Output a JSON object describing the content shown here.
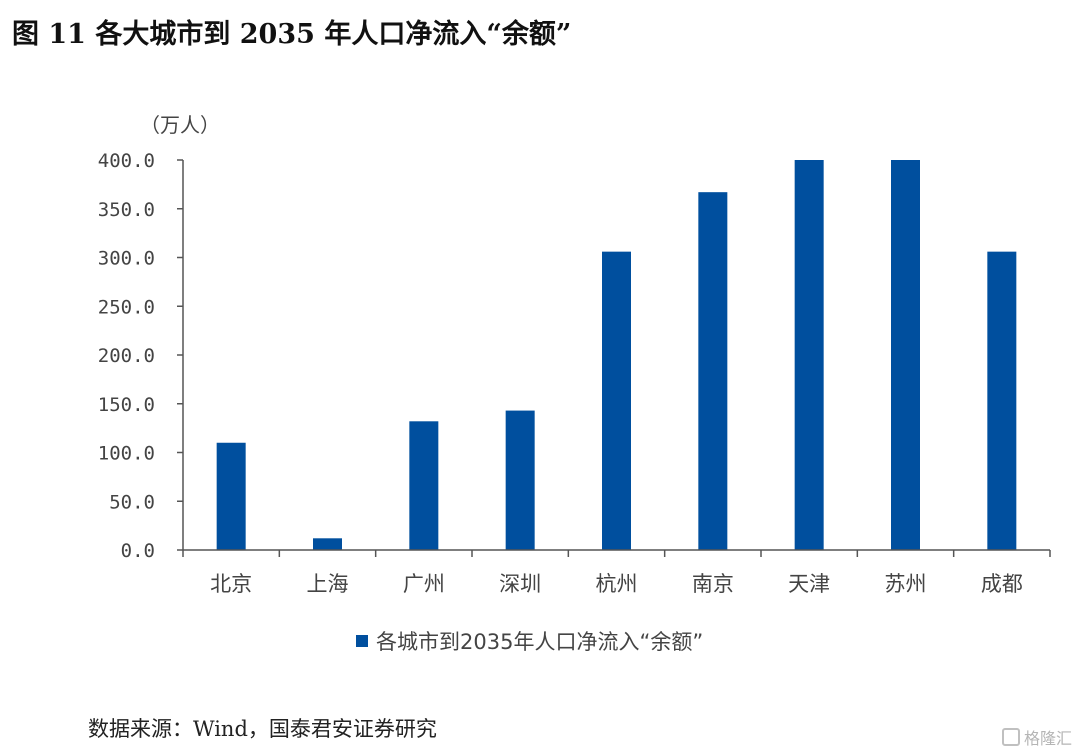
{
  "figure": {
    "title": "图 11  各大城市到 2035 年人口净流入“余额”",
    "source": "数据来源：Wind，国泰君安证券研究",
    "watermark": "格隆汇"
  },
  "colors": {
    "bar": "#004f9e",
    "axis": "#555555"
  },
  "chart_data": {
    "type": "bar",
    "unit_label": "（万人）",
    "categories": [
      "北京",
      "上海",
      "广州",
      "深圳",
      "杭州",
      "南京",
      "天津",
      "苏州",
      "成都"
    ],
    "series": [
      {
        "name": "各城市到2035年人口净流入“余额”",
        "values": [
          110.0,
          12.0,
          132.0,
          143.0,
          306.0,
          367.0,
          400.0,
          400.0,
          306.0
        ]
      }
    ],
    "ylim": [
      0,
      400
    ],
    "yticks": [
      "0.0",
      "50.0",
      "100.0",
      "150.0",
      "200.0",
      "250.0",
      "300.0",
      "350.0",
      "400.0"
    ],
    "grid": false,
    "legend_position": "bottom"
  }
}
